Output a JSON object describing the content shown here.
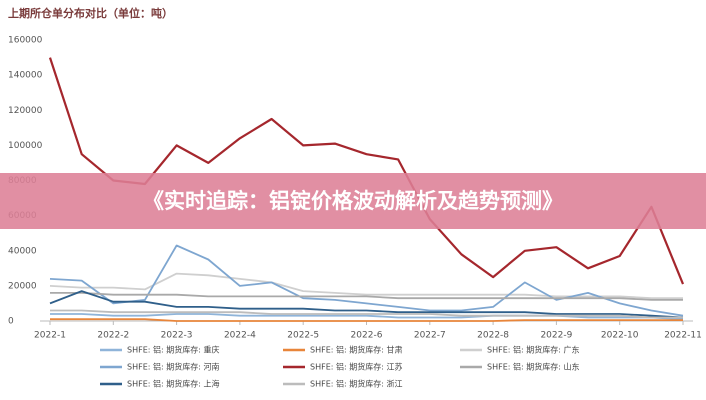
{
  "chart_data": {
    "type": "line",
    "title": "上期所仓单分布对比（单位：吨）",
    "categories": [
      "2022-1",
      null,
      "2022-2",
      null,
      "2022-3",
      null,
      "2022-4",
      null,
      "2022-5",
      null,
      "2022-6",
      null,
      "2022-7",
      null,
      "2022-8",
      null,
      "2022-9",
      null,
      "2022-10",
      null,
      "2022-11"
    ],
    "ylim": [
      0,
      160000
    ],
    "yticks": [
      0,
      20000,
      40000,
      60000,
      80000,
      100000,
      120000,
      140000,
      160000
    ],
    "series": [
      {
        "name": "SHFE: 铝: 期货库存: 重庆",
        "color": "#8fb4d9",
        "values": [
          4000,
          4000,
          3000,
          3000,
          4000,
          4000,
          3000,
          3000,
          3000,
          3000,
          3000,
          2000,
          2000,
          2000,
          3000,
          3000,
          3000,
          2000,
          2000,
          2000,
          1000
        ]
      },
      {
        "name": "SHFE: 铝: 期货库存: 甘肃",
        "color": "#e8853a",
        "values": [
          1000,
          1000,
          1000,
          1000,
          0,
          0,
          0,
          0,
          0,
          0,
          0,
          0,
          0,
          0,
          0,
          500,
          500,
          500,
          500,
          500,
          500
        ]
      },
      {
        "name": "SHFE: 铝: 期货库存: 广东",
        "color": "#cfcfcf",
        "values": [
          20000,
          19000,
          19000,
          18000,
          27000,
          26000,
          24000,
          22000,
          17000,
          16000,
          15000,
          15000,
          15000,
          15000,
          15000,
          15000,
          14000,
          14000,
          14000,
          13000,
          13000
        ]
      },
      {
        "name": "SHFE: 铝: 期货库存: 河南",
        "color": "#7ea6d0",
        "values": [
          24000,
          23000,
          10000,
          12000,
          43000,
          35000,
          20000,
          22000,
          13000,
          12000,
          10000,
          8000,
          6000,
          6000,
          8000,
          22000,
          12000,
          16000,
          10000,
          6000,
          3000
        ]
      },
      {
        "name": "SHFE: 铝: 期货库存: 江苏",
        "color": "#a5272d",
        "values": [
          150000,
          95000,
          80000,
          78000,
          100000,
          90000,
          104000,
          115000,
          100000,
          101000,
          95000,
          92000,
          58000,
          38000,
          25000,
          40000,
          42000,
          30000,
          37000,
          65000,
          21000
        ]
      },
      {
        "name": "SHFE: 铝: 期货库存: 山东",
        "color": "#a9a9a9",
        "values": [
          16000,
          16000,
          15000,
          15000,
          15000,
          14000,
          14000,
          14000,
          14000,
          14000,
          14000,
          13000,
          13000,
          13000,
          13000,
          13000,
          13000,
          13000,
          13000,
          12000,
          12000
        ]
      },
      {
        "name": "SHFE: 铝: 期货库存: 上海",
        "color": "#2f5f8a",
        "values": [
          10000,
          17000,
          11000,
          11000,
          8000,
          8000,
          7000,
          7000,
          7000,
          6000,
          6000,
          5000,
          5000,
          5000,
          5000,
          5000,
          4000,
          4000,
          4000,
          3000,
          2000
        ]
      },
      {
        "name": "SHFE: 铝: 期货库存: 浙江",
        "color": "#bcbcbc",
        "values": [
          6000,
          6000,
          5000,
          5000,
          5000,
          5000,
          5000,
          4000,
          4000,
          4000,
          4000,
          4000,
          4000,
          3000,
          3000,
          3000,
          3000,
          3000,
          3000,
          2000,
          2000
        ]
      }
    ]
  },
  "banner": "《实时追踪：铝锭价格波动解析及趋势预测》"
}
